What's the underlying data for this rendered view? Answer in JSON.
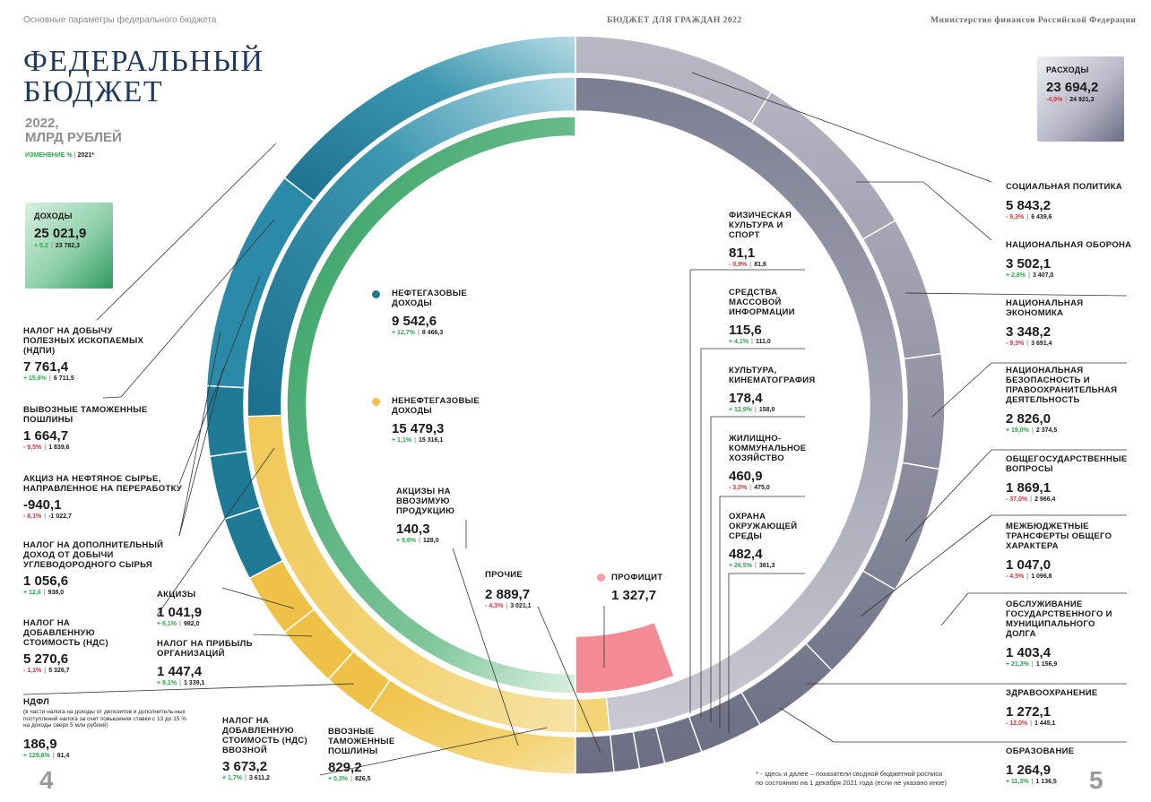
{
  "header": {
    "left": "Основные параметры федерального бюджета",
    "center": "БЮДЖЕТ ДЛЯ ГРАЖДАН 2022",
    "right": "Министерство финансов Российской Федерации"
  },
  "title": {
    "line1": "ФЕДЕРАЛЬНЫЙ",
    "line2": "БЮДЖЕТ",
    "sub1": "2022,",
    "sub2": "МЛРД РУБЛЕЙ",
    "legend_change": "ИЗМЕНЕНИЕ %",
    "legend_year": "2021*"
  },
  "revenues_box": {
    "label": "ДОХОДЫ",
    "value": "25 021,9",
    "change": "+ 5,2",
    "prev": "23 782,3"
  },
  "expenses_box": {
    "label": "РАСХОДЫ",
    "value": "23 694,2",
    "change": "-4,9%",
    "prev": "24 921,3"
  },
  "left_items": [
    {
      "label": "НАЛОГ НА ДОБЫЧУ ПОЛЕЗНЫХ ИСКОПАЕМЫХ (НДПИ)",
      "value": "7 761,4",
      "change": "+ 15,6%",
      "prev": "6 711,5",
      "dir": "g"
    },
    {
      "label": "ВЫВОЗНЫЕ ТАМОЖЕННЫЕ ПОШЛИНЫ",
      "value": "1 664,7",
      "change": "- 9,5%",
      "prev": "1 839,6",
      "dir": "r"
    },
    {
      "label": "АКЦИЗ НА НЕФТЯНОЕ СЫРЬЕ, НАПРАВЛЕННОЕ НА ПЕРЕРАБОТКУ",
      "value": "-940,1",
      "change": "- 8,1%",
      "prev": "-1 022,7",
      "dir": "r"
    },
    {
      "label": "НАЛОГ НА ДОПОЛНИТЕЛЬНЫЙ ДОХОД ОТ ДОБЫЧИ УГЛЕВОДОРОДНОГО СЫРЬЯ",
      "value": "1 056,6",
      "change": "+ 12,6",
      "prev": "938,0",
      "dir": "g"
    },
    {
      "label": "НАЛОГ НА ДОБАВЛЕННУЮ СТОИМОСТЬ (НДС)",
      "value": "5 270,6",
      "change": "- 1,1%",
      "prev": "5 326,7",
      "dir": "r"
    },
    {
      "label": "НДФЛ",
      "note": "(в части налога на доходы от депозитов и дополнитель-ных поступлений налога за счет повышения ставки с 13 до 15 % на доходы сверх 5 млн рублей)",
      "value": "186,9",
      "change": "+ 129,6%",
      "prev": "81,4",
      "dir": "g"
    }
  ],
  "inner_items": [
    {
      "label": "АКЦИЗЫ",
      "value": "1 041,9",
      "change": "+ 6,1%",
      "prev": "982,0",
      "dir": "g"
    },
    {
      "label": "НАЛОГ НА ПРИБЫЛЬ ОРГАНИЗАЦИЙ",
      "value": "1 447,4",
      "change": "+ 8,1%",
      "prev": "1 339,1",
      "dir": "g"
    },
    {
      "label": "НАЛОГ НА ДОБАВЛЕННУЮ СТОИМОСТЬ (НДС) ВВОЗНОЙ",
      "value": "3 673,2",
      "change": "+ 1,7%",
      "prev": "3 611,2",
      "dir": "g"
    },
    {
      "label": "ВВОЗНЫЕ ТАМОЖЕННЫЕ ПОШЛИНЫ",
      "value": "829,2",
      "change": "+ 0,3%",
      "prev": "826,5",
      "dir": "g"
    }
  ],
  "center_items": [
    {
      "label": "НЕФТЕГАЗОВЫЕ ДОХОДЫ",
      "value": "9 542,6",
      "change": "+ 12,7%",
      "prev": "8 466,3",
      "dir": "g",
      "dot": "#1f7a96"
    },
    {
      "label": "НЕНЕФТЕГАЗОВЫЕ ДОХОДЫ",
      "value": "15 479,3",
      "change": "+ 1,1%",
      "prev": "15 316,1",
      "dir": "g",
      "dot": "#f0c54a"
    },
    {
      "label": "АКЦИЗЫ НА ВВОЗИМУЮ ПРОДУКЦИЮ",
      "value": "140,3",
      "change": "+ 9,6%",
      "prev": "128,0",
      "dir": "g"
    },
    {
      "label": "ПРОЧИЕ",
      "value": "2 889,7",
      "change": "- 4,3%",
      "prev": "3 021,1",
      "dir": "r"
    },
    {
      "label": "ПРОФИЦИТ",
      "value": "1 327,7",
      "dot": "#f4a0a8"
    }
  ],
  "mid_right_items": [
    {
      "label": "ФИЗИЧЕСКАЯ КУЛЬТУРА И СПОРТ",
      "value": "81,1",
      "change": "- 0,9%",
      "prev": "81,8",
      "dir": "r"
    },
    {
      "label": "СРЕДСТВА МАССОВОЙ ИНФОРМАЦИИ",
      "value": "115,6",
      "change": "+ 4,1%",
      "prev": "111,0",
      "dir": "g"
    },
    {
      "label": "КУЛЬТУРА, КИНЕМАТОГРАФИЯ",
      "value": "178,4",
      "change": "+ 12,9%",
      "prev": "158,0",
      "dir": "g"
    },
    {
      "label": "ЖИЛИЩНО-КОММУНАЛЬНОЕ ХОЗЯЙСТВО",
      "value": "460,9",
      "change": "- 3,0%",
      "prev": "475,0",
      "dir": "r"
    },
    {
      "label": "ОХРАНА ОКРУЖАЮЩЕЙ СРЕДЫ",
      "value": "482,4",
      "change": "+ 26,5%",
      "prev": "381,3",
      "dir": "g"
    }
  ],
  "right_items": [
    {
      "label": "СОЦИАЛЬНАЯ ПОЛИТИКА",
      "value": "5 843,2",
      "change": "- 9,3%",
      "prev": "6 439,6",
      "dir": "r"
    },
    {
      "label": "НАЦИОНАЛЬНАЯ ОБОРОНА",
      "value": "3 502,1",
      "change": "+ 2,8%",
      "prev": "3 407,0",
      "dir": "g"
    },
    {
      "label": "НАЦИОНАЛЬНАЯ ЭКОНОМИКА",
      "value": "3 348,2",
      "change": "- 9,3%",
      "prev": "3 691,4",
      "dir": "r"
    },
    {
      "label": "НАЦИОНАЛЬНАЯ БЕЗОПАСНОСТЬ И ПРАВООХРАНИТЕЛЬНАЯ ДЕЯТЕЛЬНОСТЬ",
      "value": "2 826,0",
      "change": "+ 19,0%",
      "prev": "2 374,5",
      "dir": "g"
    },
    {
      "label": "ОБЩЕГОСУДАРСТВЕННЫЕ ВОПРОСЫ",
      "value": "1 869,1",
      "change": "- 37,0%",
      "prev": "2 966,4",
      "dir": "r"
    },
    {
      "label": "МЕЖБЮДЖЕТНЫЕ ТРАНСФЕРТЫ ОБЩЕГО ХАРАКТЕРА",
      "value": "1 047,0",
      "change": "- 4,5%",
      "prev": "1 096,8",
      "dir": "r"
    },
    {
      "label": "ОБСЛУЖИВАНИЕ ГОСУДАРСТВЕННОГО И МУНИЦИПАЛЬНОГО ДОЛГА",
      "value": "1 403,4",
      "change": "+ 21,3%",
      "prev": "1 156,9",
      "dir": "g"
    },
    {
      "label": "ЗДРАВООХРАНЕНИЕ",
      "value": "1 272,1",
      "change": "- 12,0%",
      "prev": "1 445,1",
      "dir": "r"
    },
    {
      "label": "ОБРАЗОВАНИЕ",
      "value": "1 264,9",
      "change": "+ 11,3%",
      "prev": "1 136,5",
      "dir": "g"
    }
  ],
  "footnote": {
    "line1": "* - здесь и далее – показатели сводной бюджетной росписи",
    "line2": "по состоянию на 1 декабря 2021 года (если не указано иное)"
  },
  "pages": {
    "left": "4",
    "right": "5"
  },
  "colors": {
    "oilgas": "#1f7a96",
    "nonoil": "#f0c54a",
    "green": "#3aa16a",
    "expense": "#8c8ca0",
    "surplus": "#f38a94",
    "title": "#1f3a5c"
  }
}
